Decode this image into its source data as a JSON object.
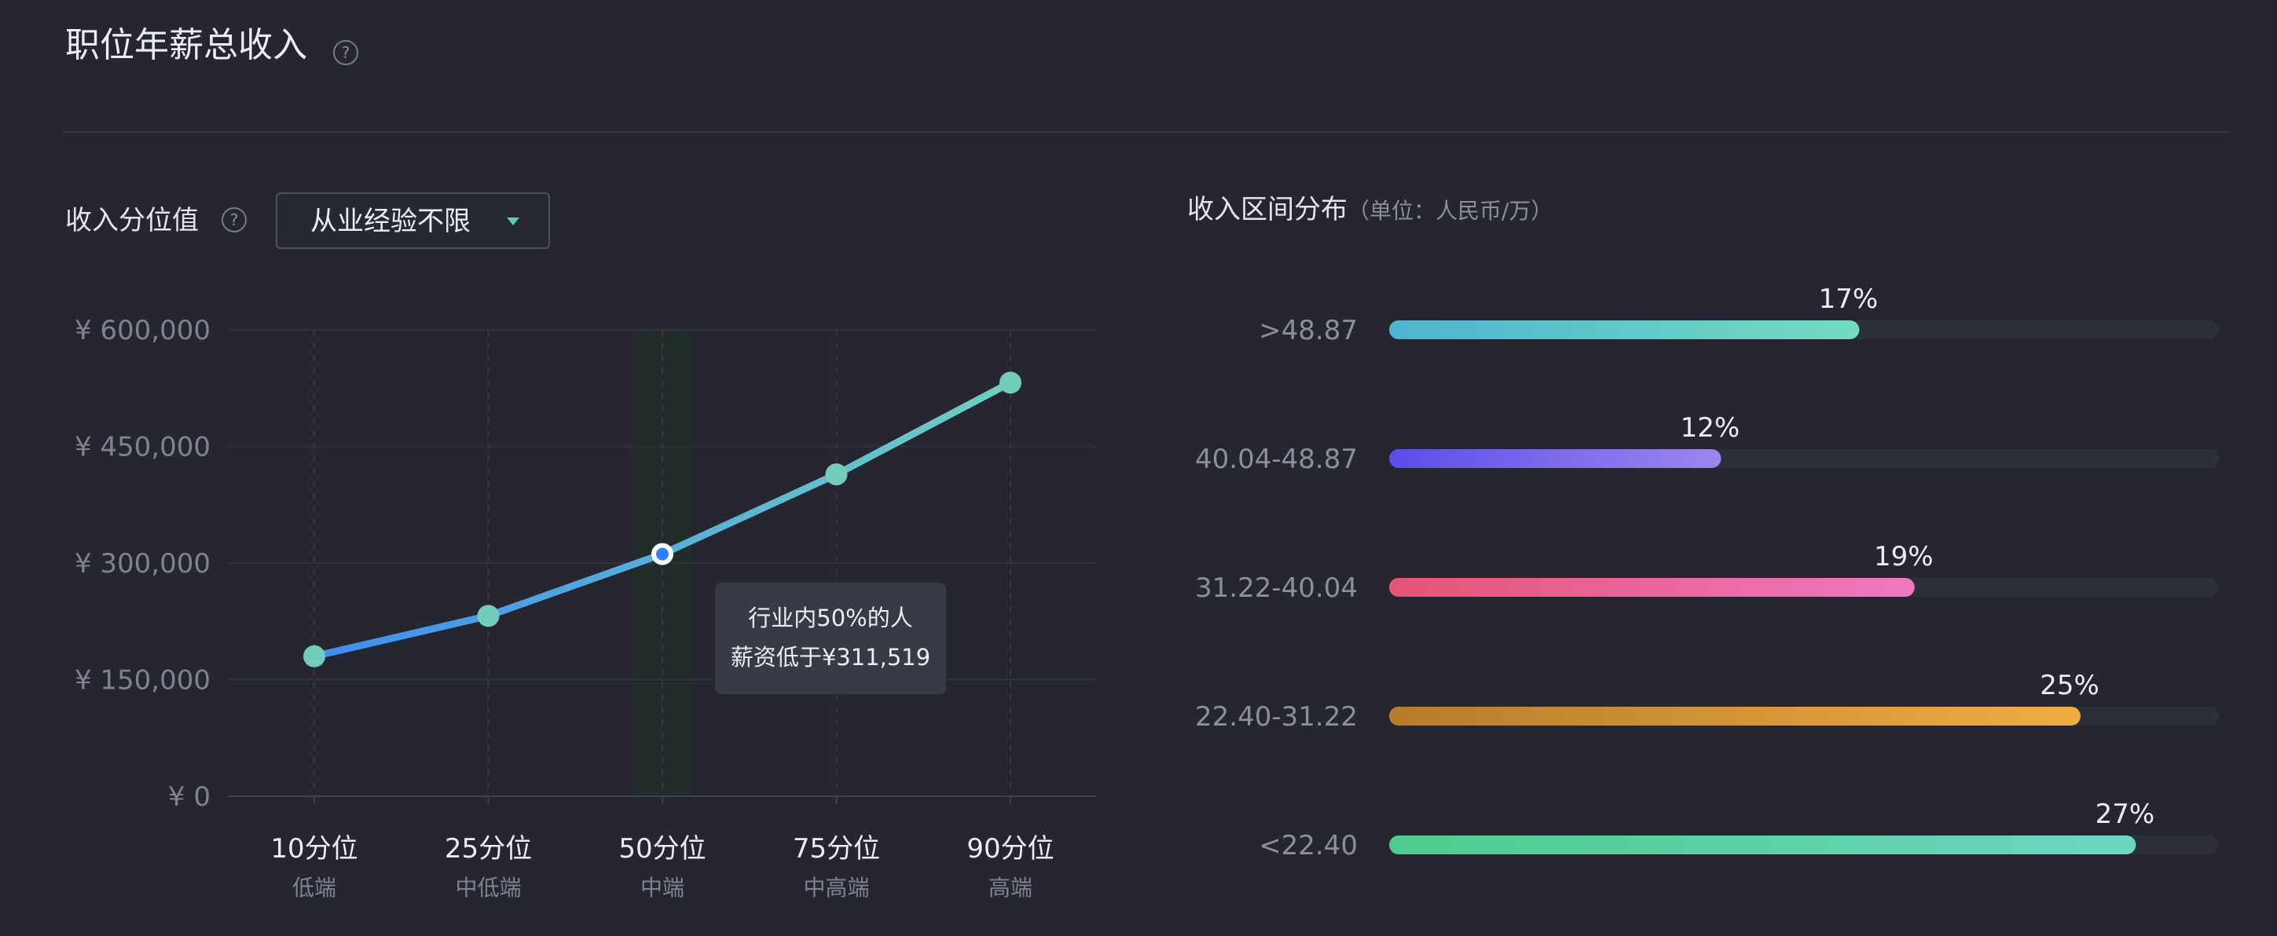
{
  "header": {
    "title": "职位年薪总收入",
    "help_glyph": "?"
  },
  "percentile_panel": {
    "label": "收入分位值",
    "help_glyph": "?",
    "dropdown": {
      "selected": "从业经验不限"
    },
    "tooltip": {
      "line1": "行业内50%的人",
      "line2": "薪资低于¥311,519"
    }
  },
  "distribution_panel": {
    "label": "收入区间分布",
    "unit": "（单位：人民币/万）"
  },
  "chart_data": [
    {
      "type": "line",
      "categories": [
        "10分位",
        "25分位",
        "50分位",
        "75分位",
        "90分位"
      ],
      "sublabels": [
        "低端",
        "中低端",
        "中端",
        "中高端",
        "高端"
      ],
      "values": [
        180000,
        232000,
        311519,
        414000,
        532000
      ],
      "ylim": [
        0,
        600000
      ],
      "yticks": [
        0,
        150000,
        300000,
        450000,
        600000
      ],
      "ytick_labels": [
        "¥ 0",
        "¥ 150,000",
        "¥ 300,000",
        "¥ 450,000",
        "¥ 600,000"
      ],
      "highlight_index": 2,
      "grid": true,
      "colors": {
        "line_start": "#3f8ef0",
        "line_end": "#6fcfc0",
        "point": "#72cdbd",
        "highlight_point": "#2f80ff"
      }
    },
    {
      "type": "bar",
      "orientation": "horizontal",
      "categories": [
        ">48.87",
        "40.04-48.87",
        "31.22-40.04",
        "22.40-31.22",
        "<22.40"
      ],
      "values": [
        17,
        12,
        19,
        25,
        27
      ],
      "value_labels": [
        "17%",
        "12%",
        "19%",
        "25%",
        "27%"
      ],
      "xlim": [
        0,
        30
      ],
      "colors": [
        [
          "#4fb3cf",
          "#74dcc2"
        ],
        [
          "#5b4ee8",
          "#9d86ee"
        ],
        [
          "#e45477",
          "#ef79c1"
        ],
        [
          "#b87b2a",
          "#f0ad43"
        ],
        [
          "#4fcb8c",
          "#6cd6c4"
        ]
      ],
      "track_color": "#2d2f39"
    }
  ]
}
